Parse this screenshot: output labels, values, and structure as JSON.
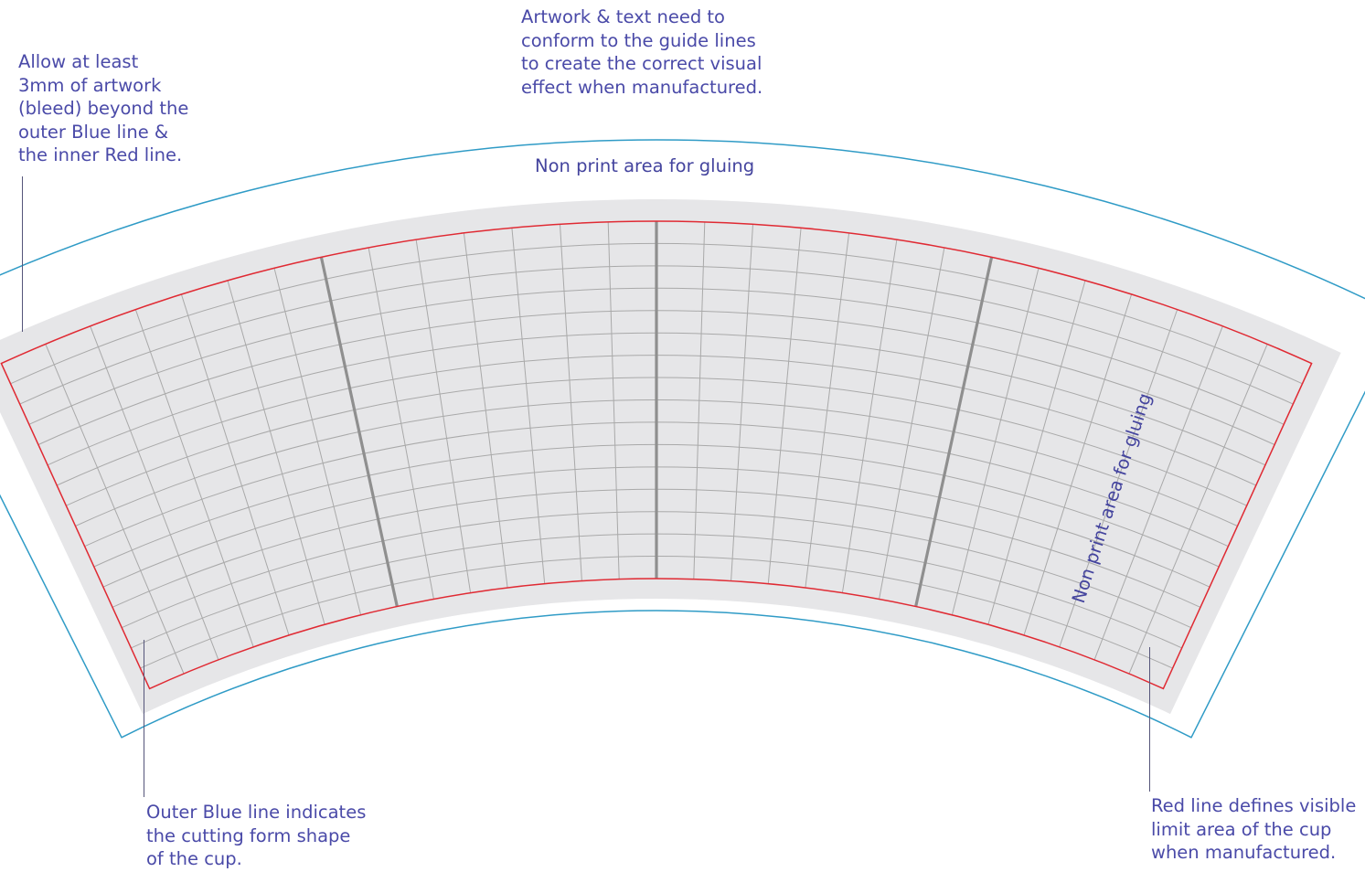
{
  "notes": {
    "artwork_guides": "Artwork & text need to\nconform to the guide lines\nto create the correct visual\neffect when manufactured.",
    "bleed": "Allow at least\n3mm of artwork\n(bleed) beyond the\nouter Blue line &\nthe inner Red line.",
    "cutting_form": "Outer Blue line indicates\nthe cutting form shape\nof the cup.",
    "red_line": "Red line defines visible\nlimit area of the cup\nwhen manufactured."
  },
  "labels": {
    "top_glue_area": "Non print area for gluing",
    "side_glue_area": "Non print area for gluing"
  },
  "colors": {
    "cut_line": "#2f9bc6",
    "visible_limit": "#e02a33",
    "bleed_band": "#e6e6e8",
    "grid": "#a9a9a9",
    "panel_divider": "#8f8f8f",
    "annotation_text": "#4a4aa8"
  },
  "grid": {
    "radial_columns": 28,
    "horizontal_rows": 16,
    "panel_divider_columns": [
      7,
      14,
      21
    ]
  }
}
